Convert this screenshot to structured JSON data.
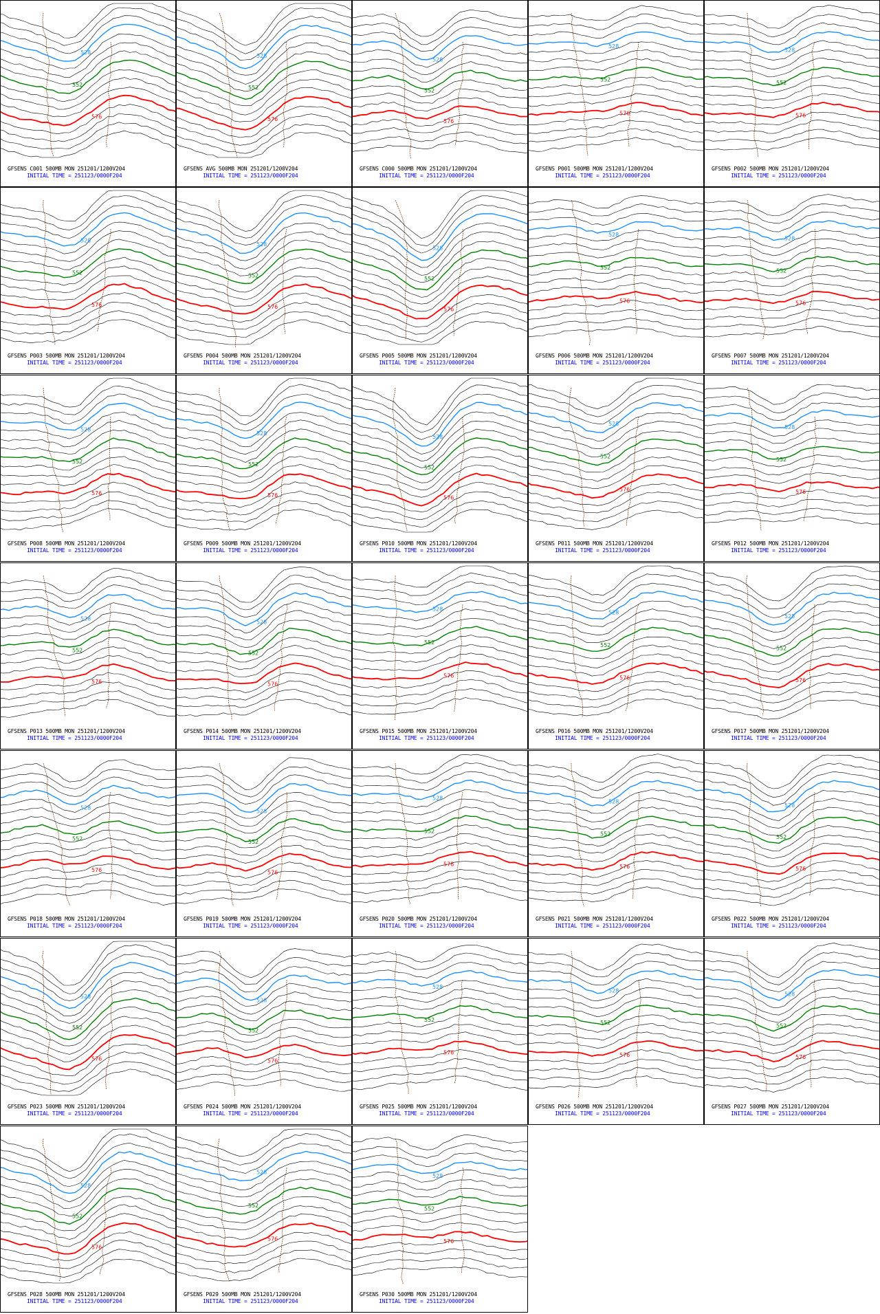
{
  "colors": {
    "contour_black": "#000000",
    "contour_528": "#1e90ff",
    "contour_552": "#008000",
    "contour_576": "#ff0000",
    "coastline": "#8b4513",
    "caption_top": "#000000",
    "caption_bottom": "#0000ff"
  },
  "contour_labels": {
    "blue": "528",
    "green": "552",
    "red": "576"
  },
  "panels": [
    {
      "member": "C001",
      "title": "GFSENS C001 500MB MON 251201/1200V204",
      "init": "INITIAL TIME = 251123/0000F204"
    },
    {
      "member": "AVG",
      "title": "GFSENS AVG 500MB MON 251201/1200V204",
      "init": "INITIAL TIME = 251123/0000F204"
    },
    {
      "member": "C000",
      "title": "GFSENS C000 500MB MON 251201/1200V204",
      "init": "INITIAL TIME = 251123/0000F204"
    },
    {
      "member": "P001",
      "title": "GFSENS P001 500MB MON 251201/1200V204",
      "init": "INITIAL TIME = 251123/0000F204"
    },
    {
      "member": "P002",
      "title": "GFSENS P002 500MB MON 251201/1200V204",
      "init": "INITIAL TIME = 251123/0000F204"
    },
    {
      "member": "P003",
      "title": "GFSENS P003 500MB MON 251201/1200V204",
      "init": "INITIAL TIME = 251123/0000F204"
    },
    {
      "member": "P004",
      "title": "GFSENS P004 500MB MON 251201/1200V204",
      "init": "INITIAL TIME = 251123/0000F204"
    },
    {
      "member": "P005",
      "title": "GFSENS P005 500MB MON 251201/1200V204",
      "init": "INITIAL TIME = 251123/0000F204"
    },
    {
      "member": "P006",
      "title": "GFSENS P006 500MB MON 251201/1200V204",
      "init": "INITIAL TIME = 251123/0000F204"
    },
    {
      "member": "P007",
      "title": "GFSENS P007 500MB MON 251201/1200V204",
      "init": "INITIAL TIME = 251123/0000F204"
    },
    {
      "member": "P008",
      "title": "GFSENS P008 500MB MON 251201/1200V204",
      "init": "INITIAL TIME = 251123/0000F204"
    },
    {
      "member": "P009",
      "title": "GFSENS P009 500MB MON 251201/1200V204",
      "init": "INITIAL TIME = 251123/0000F204"
    },
    {
      "member": "P010",
      "title": "GFSENS P010 500MB MON 251201/1200V204",
      "init": "INITIAL TIME = 251123/0000F204"
    },
    {
      "member": "P011",
      "title": "GFSENS P011 500MB MON 251201/1200V204",
      "init": "INITIAL TIME = 251123/0000F204"
    },
    {
      "member": "P012",
      "title": "GFSENS P012 500MB MON 251201/1200V204",
      "init": "INITIAL TIME = 251123/0000F204"
    },
    {
      "member": "P013",
      "title": "GFSENS P013 500MB MON 251201/1200V204",
      "init": "INITIAL TIME = 251123/0000F204"
    },
    {
      "member": "P014",
      "title": "GFSENS P014 500MB MON 251201/1200V204",
      "init": "INITIAL TIME = 251123/0000F204"
    },
    {
      "member": "P015",
      "title": "GFSENS P015 500MB MON 251201/1200V204",
      "init": "INITIAL TIME = 251123/0000F204"
    },
    {
      "member": "P016",
      "title": "GFSENS P016 500MB MON 251201/1200V204",
      "init": "INITIAL TIME = 251123/0000F204"
    },
    {
      "member": "P017",
      "title": "GFSENS P017 500MB MON 251201/1200V204",
      "init": "INITIAL TIME = 251123/0000F204"
    },
    {
      "member": "P018",
      "title": "GFSENS P018 500MB MON 251201/1200V204",
      "init": "INITIAL TIME = 251123/0000F204"
    },
    {
      "member": "P019",
      "title": "GFSENS P019 500MB MON 251201/1200V204",
      "init": "INITIAL TIME = 251123/0000F204"
    },
    {
      "member": "P020",
      "title": "GFSENS P020 500MB MON 251201/1200V204",
      "init": "INITIAL TIME = 251123/0000F204"
    },
    {
      "member": "P021",
      "title": "GFSENS P021 500MB MON 251201/1200V204",
      "init": "INITIAL TIME = 251123/0000F204"
    },
    {
      "member": "P022",
      "title": "GFSENS P022 500MB MON 251201/1200V204",
      "init": "INITIAL TIME = 251123/0000F204"
    },
    {
      "member": "P023",
      "title": "GFSENS P023 500MB MON 251201/1200V204",
      "init": "INITIAL TIME = 251123/0000F204"
    },
    {
      "member": "P024",
      "title": "GFSENS P024 500MB MON 251201/1200V204",
      "init": "INITIAL TIME = 251123/0000F204"
    },
    {
      "member": "P025",
      "title": "GFSENS P025 500MB MON 251201/1200V204",
      "init": "INITIAL TIME = 251123/0000F204"
    },
    {
      "member": "P026",
      "title": "GFSENS P026 500MB MON 251201/1200V204",
      "init": "INITIAL TIME = 251123/0000F204"
    },
    {
      "member": "P027",
      "title": "GFSENS P027 500MB MON 251201/1200V204",
      "init": "INITIAL TIME = 251123/0000F204"
    },
    {
      "member": "P028",
      "title": "GFSENS P028 500MB MON 251201/1200V204",
      "init": "INITIAL TIME = 251123/0000F204"
    },
    {
      "member": "P029",
      "title": "GFSENS P029 500MB MON 251201/1200V204",
      "init": "INITIAL TIME = 251123/0000F204"
    },
    {
      "member": "P030",
      "title": "GFSENS P030 500MB MON 251201/1200V204",
      "init": "INITIAL TIME = 251123/0000F204"
    }
  ]
}
